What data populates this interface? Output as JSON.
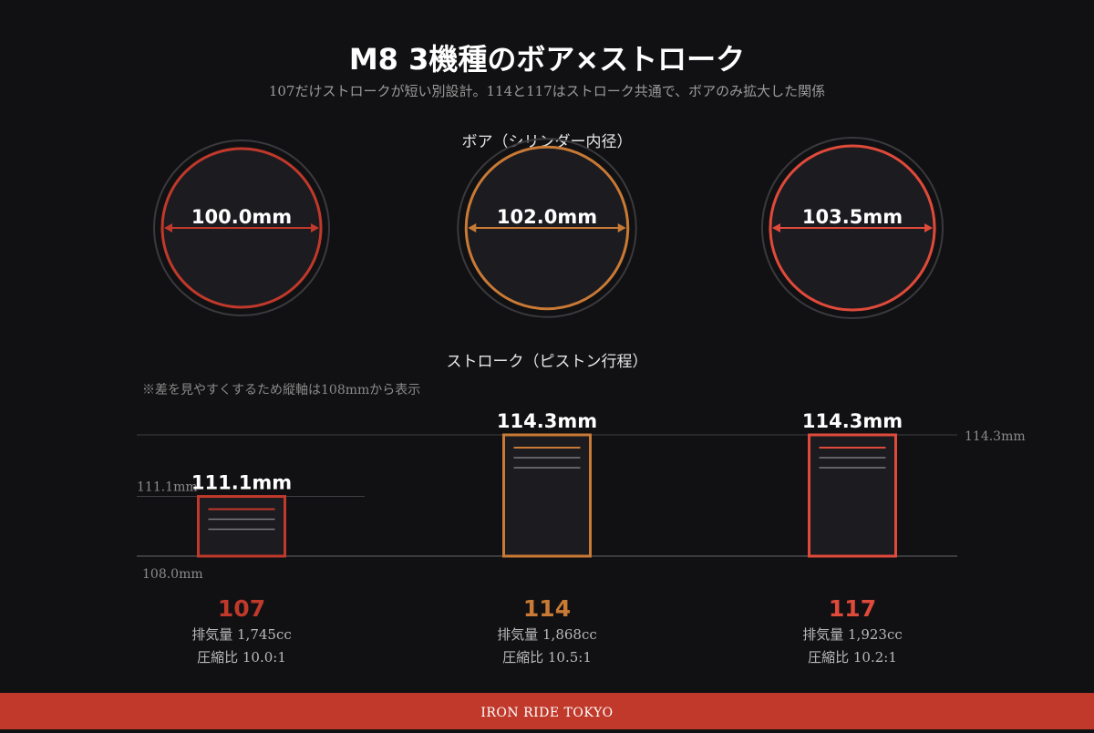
{
  "header": {
    "title": "M8 3機種のボア×ストローク",
    "subtitle": "107だけストロークが短い別設計。114と117はストローク共通で、ボアのみ拡大した関係"
  },
  "bore_section": {
    "heading": "ボア（シリンダー内径）"
  },
  "stroke_section": {
    "heading": "ストローク（ピストン行程）",
    "note": "※差を見やすくするため縦軸は108mmから表示",
    "axis_min_label": "108.0mm",
    "axis_ref_label_low": "111.1mm",
    "axis_ref_label_high": "114.3mm"
  },
  "colors": {
    "m107": "#c0392b",
    "m114": "#c97a35",
    "m117": "#e04a3a",
    "bg": "#111113",
    "footer": "#c0392b"
  },
  "chart_data": {
    "type": "bar",
    "categories": [
      "107",
      "114",
      "117"
    ],
    "series": [
      {
        "name": "ボア",
        "values": [
          100.0,
          102.0,
          103.5
        ]
      },
      {
        "name": "ストローク",
        "values": [
          111.1,
          114.3,
          114.3
        ]
      }
    ],
    "ylim": [
      108.0,
      114.3
    ]
  },
  "models": [
    {
      "name": "107",
      "color": "#c0392b",
      "bore": 100.0,
      "bore_label": "100.0mm",
      "stroke": 111.1,
      "stroke_label": "111.1mm",
      "displacement": "排気量  1,745cc",
      "compression": "圧縮比  10.0:1"
    },
    {
      "name": "114",
      "color": "#c97a35",
      "bore": 102.0,
      "bore_label": "102.0mm",
      "stroke": 114.3,
      "stroke_label": "114.3mm",
      "displacement": "排気量  1,868cc",
      "compression": "圧縮比  10.5:1"
    },
    {
      "name": "117",
      "color": "#e04a3a",
      "bore": 103.5,
      "bore_label": "103.5mm",
      "stroke": 114.3,
      "stroke_label": "114.3mm",
      "displacement": "排気量  1,923cc",
      "compression": "圧縮比  10.2:1"
    }
  ],
  "footer": {
    "brand": "IRON RIDE TOKYO"
  }
}
